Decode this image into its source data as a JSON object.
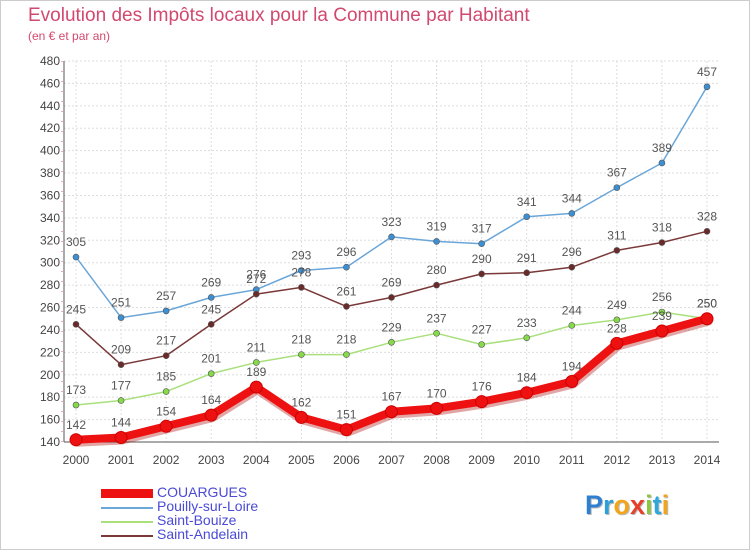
{
  "header": {
    "title": "Evolution des Impôts locaux pour la Commune par Habitant",
    "subtitle": "(en € et par an)"
  },
  "logo": {
    "text": "Proxiti",
    "letters": [
      {
        "ch": "P",
        "color": "#2f7fd0"
      },
      {
        "ch": "r",
        "color": "#2f9fd9"
      },
      {
        "ch": "o",
        "color": "#f2a51b"
      },
      {
        "ch": "x",
        "color": "#e63f2b"
      },
      {
        "ch": "i",
        "color": "#8cc63f"
      },
      {
        "ch": "t",
        "color": "#2fa8d9"
      },
      {
        "ch": "i",
        "color": "#f2a51b"
      }
    ]
  },
  "chart_data": {
    "type": "line",
    "title": "Evolution des Impôts locaux pour la Commune par Habitant",
    "subtitle": "(en € et par an)",
    "xlabel": "",
    "ylabel": "",
    "x": [
      "2000",
      "2001",
      "2002",
      "2003",
      "2004",
      "2005",
      "2006",
      "2007",
      "2008",
      "2009",
      "2010",
      "2011",
      "2012",
      "2013",
      "2014"
    ],
    "ylim": [
      140,
      480
    ],
    "yticks": [
      140,
      160,
      180,
      200,
      220,
      240,
      260,
      280,
      300,
      320,
      340,
      360,
      380,
      400,
      420,
      440,
      460,
      480
    ],
    "grid": true,
    "legend_position": "bottom-left",
    "series": [
      {
        "name": "COUARGUES",
        "color": "#ee1111",
        "point_color": "#ee1111",
        "width": 8,
        "values": [
          142,
          144,
          154,
          164,
          189,
          162,
          151,
          167,
          170,
          176,
          184,
          194,
          228,
          239,
          250
        ]
      },
      {
        "name": "Pouilly-sur-Loire",
        "color": "#6aa6d8",
        "point_color": "#3c8fd2",
        "width": 1.5,
        "values": [
          305,
          251,
          257,
          269,
          276,
          293,
          296,
          323,
          319,
          317,
          341,
          344,
          367,
          389,
          457
        ]
      },
      {
        "name": "Saint-Bouize",
        "color": "#a9e07c",
        "point_color": "#86d94a",
        "width": 1.5,
        "values": [
          173,
          177,
          185,
          201,
          211,
          218,
          218,
          229,
          237,
          227,
          233,
          244,
          249,
          256,
          250
        ]
      },
      {
        "name": "Saint-Andelain",
        "color": "#7a3838",
        "point_color": "#6b2a2a",
        "width": 1.5,
        "values": [
          245,
          209,
          217,
          245,
          272,
          278,
          261,
          269,
          280,
          290,
          291,
          296,
          311,
          318,
          328
        ]
      }
    ]
  }
}
